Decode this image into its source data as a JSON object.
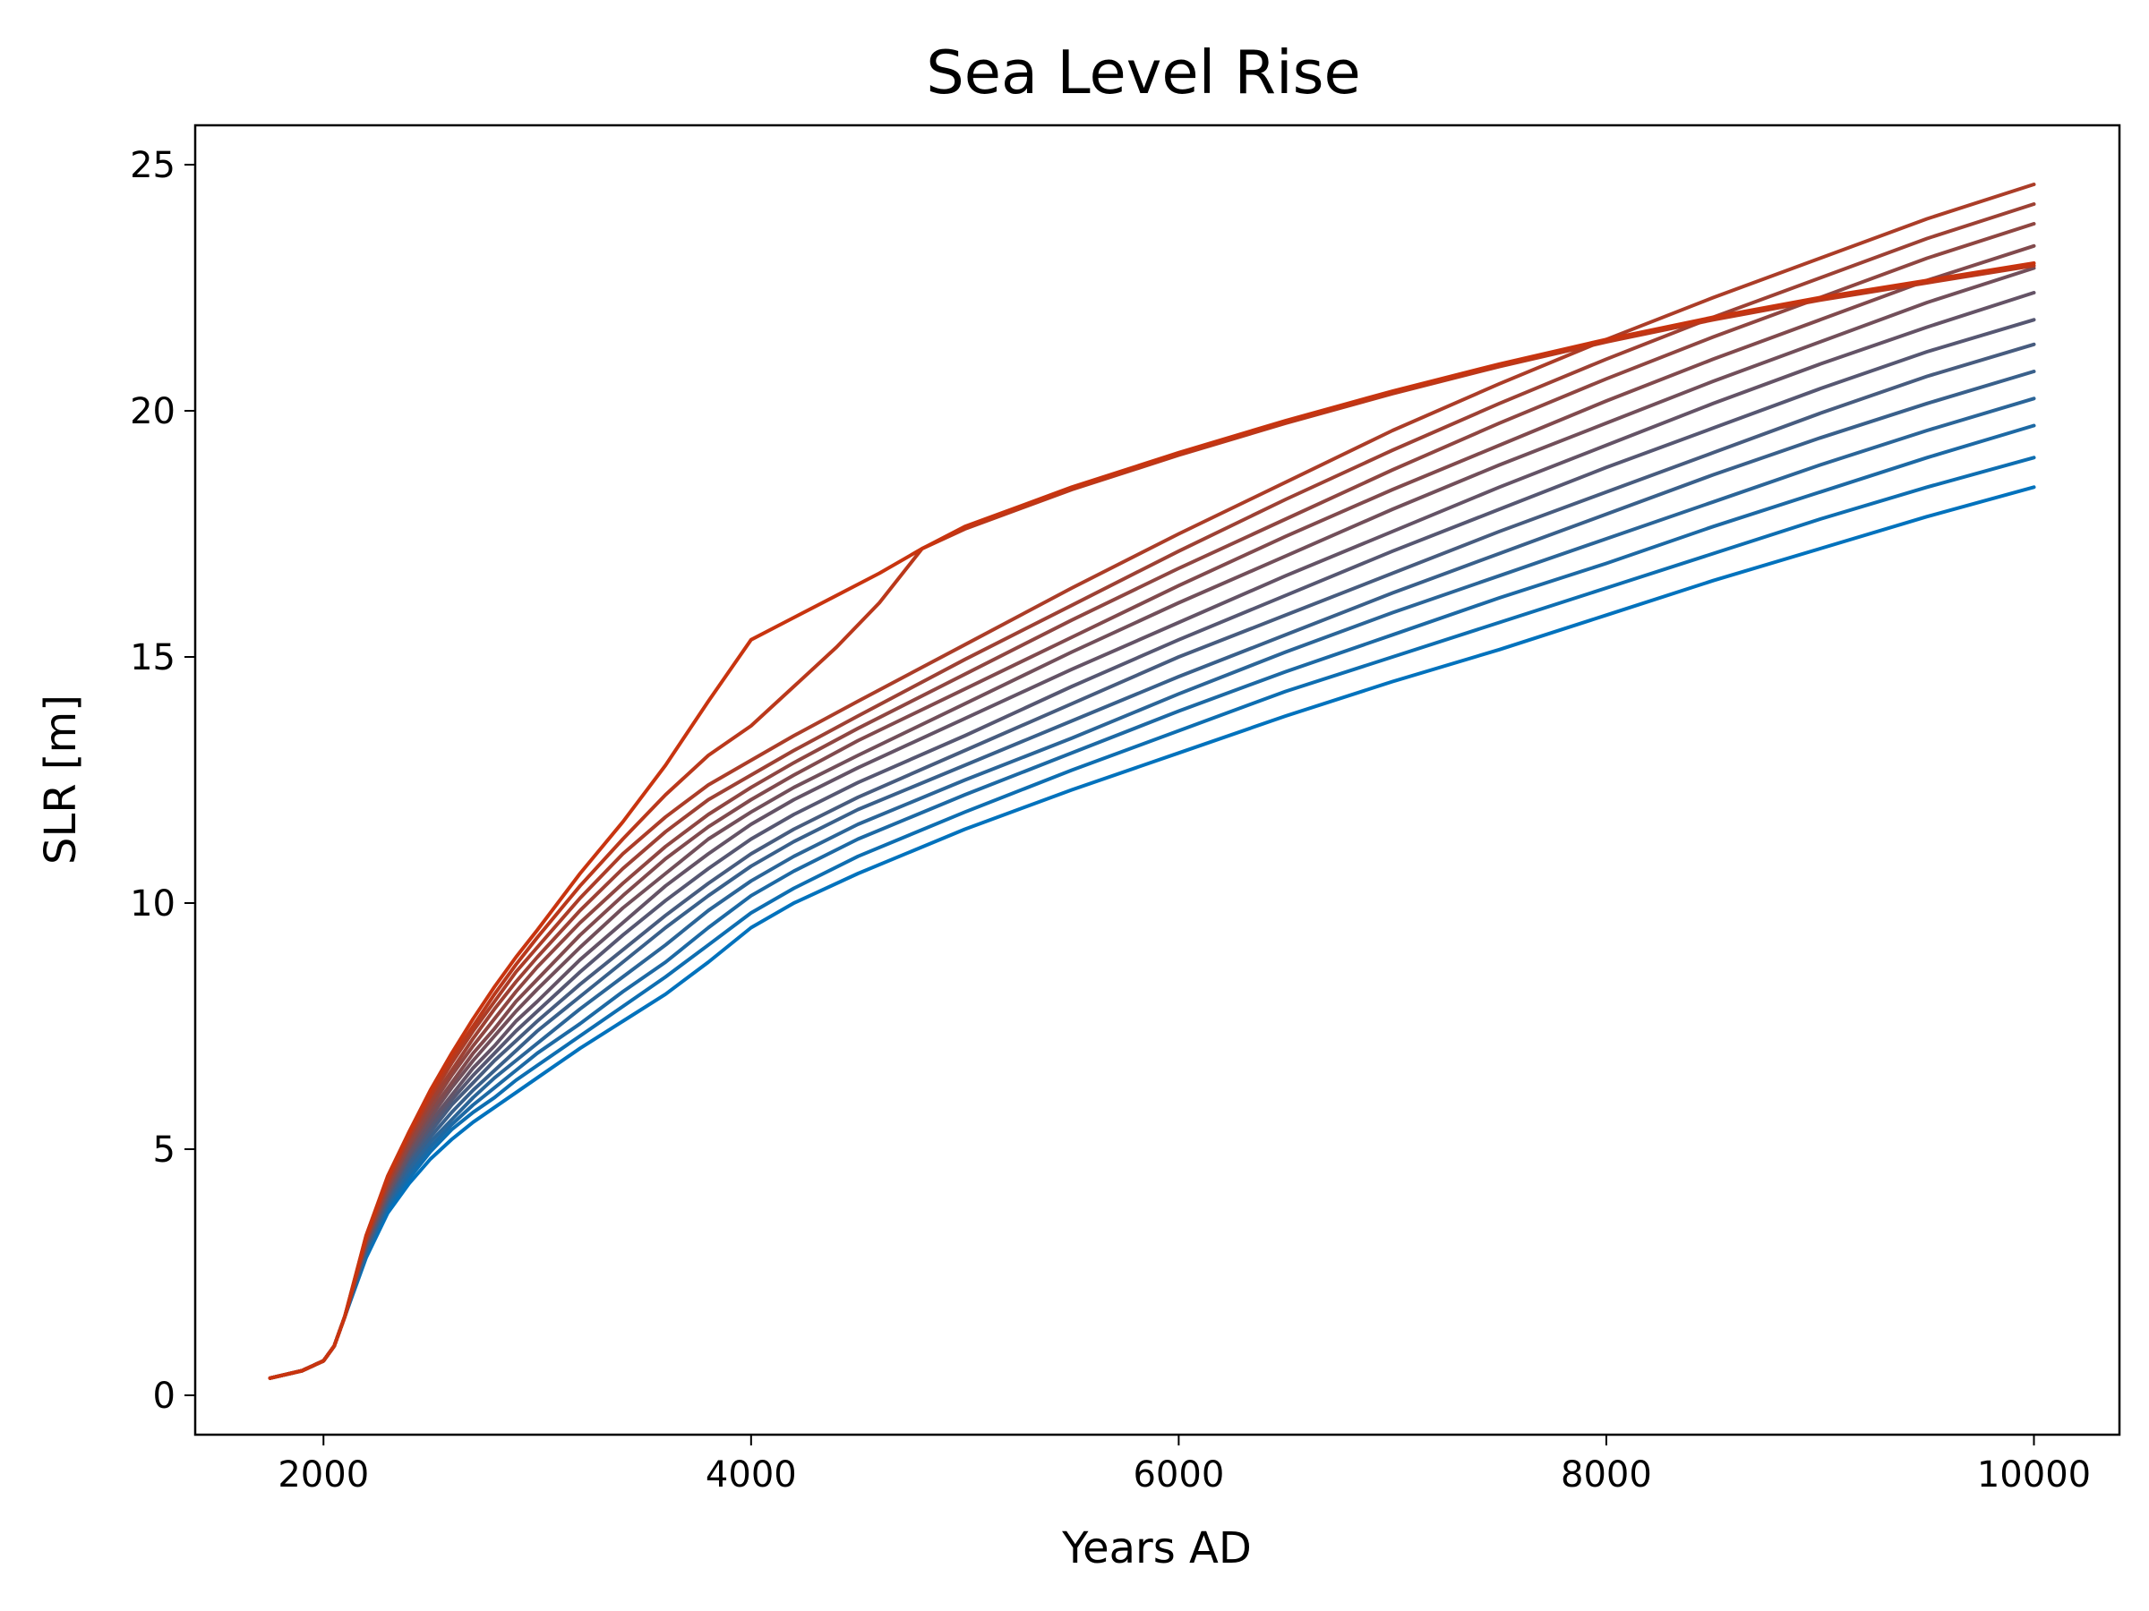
{
  "chart_data": {
    "type": "line",
    "title": "Sea Level Rise",
    "xlabel": "Years AD",
    "ylabel": "SLR [m]",
    "xlim": [
      1400,
      10400
    ],
    "ylim": [
      -0.8,
      25.8
    ],
    "xticks": [
      2000,
      4000,
      6000,
      8000,
      10000
    ],
    "yticks": [
      0,
      5,
      10,
      15,
      20,
      25
    ],
    "grid": false,
    "legend": "none",
    "colors": {
      "start": "#0072bd",
      "end": "#c8340f"
    },
    "series": [
      {
        "x": [
          1750,
          1900,
          2000,
          2050,
          2100,
          2200,
          2300,
          2400,
          2500,
          2600,
          2700,
          2800,
          2900,
          3000,
          3200,
          3400,
          3600,
          3800,
          4000,
          4200,
          4500,
          5000,
          5500,
          6000,
          6500,
          7000,
          7500,
          8000,
          8500,
          9000,
          9500,
          10000
        ],
        "values": [
          0.35,
          0.5,
          0.7,
          1.0,
          1.6,
          2.8,
          3.7,
          4.3,
          4.8,
          5.2,
          5.55,
          5.85,
          6.15,
          6.45,
          7.05,
          7.6,
          8.15,
          8.8,
          9.5,
          10.0,
          10.6,
          11.5,
          12.3,
          13.05,
          13.8,
          14.5,
          15.15,
          15.85,
          16.55,
          17.2,
          17.85,
          18.45
        ]
      },
      {
        "x": [
          1750,
          1900,
          2000,
          2050,
          2100,
          2200,
          2300,
          2400,
          2500,
          2600,
          2700,
          2800,
          2900,
          3000,
          3200,
          3400,
          3600,
          3800,
          4000,
          4200,
          4500,
          5000,
          5500,
          6000,
          6500,
          7000,
          7500,
          8000,
          8500,
          9000,
          9500,
          10000
        ],
        "values": [
          0.35,
          0.5,
          0.7,
          1.0,
          1.6,
          2.85,
          3.8,
          4.4,
          4.95,
          5.4,
          5.75,
          6.05,
          6.4,
          6.7,
          7.3,
          7.9,
          8.5,
          9.15,
          9.8,
          10.3,
          10.95,
          11.85,
          12.7,
          13.5,
          14.3,
          15.0,
          15.7,
          16.4,
          17.1,
          17.8,
          18.45,
          19.05
        ]
      },
      {
        "x": [
          1750,
          1900,
          2000,
          2050,
          2100,
          2200,
          2300,
          2400,
          2500,
          2600,
          2700,
          2800,
          2900,
          3000,
          3200,
          3400,
          3600,
          3800,
          4000,
          4200,
          4500,
          5000,
          5500,
          6000,
          6500,
          7000,
          7500,
          8000,
          8500,
          9000,
          9500,
          10000
        ],
        "values": [
          0.35,
          0.5,
          0.7,
          1.0,
          1.6,
          2.9,
          3.85,
          4.5,
          5.05,
          5.5,
          5.9,
          6.25,
          6.6,
          6.95,
          7.55,
          8.2,
          8.8,
          9.5,
          10.15,
          10.65,
          11.3,
          12.2,
          13.05,
          13.9,
          14.7,
          15.45,
          16.2,
          16.9,
          17.65,
          18.35,
          19.05,
          19.7
        ]
      },
      {
        "x": [
          1750,
          1900,
          2000,
          2050,
          2100,
          2200,
          2300,
          2400,
          2500,
          2600,
          2700,
          2800,
          2900,
          3000,
          3200,
          3400,
          3600,
          3800,
          4000,
          4200,
          4500,
          5000,
          5500,
          6000,
          6500,
          7000,
          7500,
          8000,
          8500,
          9000,
          9500,
          10000
        ],
        "values": [
          0.35,
          0.5,
          0.7,
          1.0,
          1.6,
          2.95,
          3.9,
          4.6,
          5.15,
          5.6,
          6.05,
          6.45,
          6.8,
          7.15,
          7.85,
          8.5,
          9.15,
          9.85,
          10.45,
          10.95,
          11.6,
          12.5,
          13.35,
          14.25,
          15.1,
          15.9,
          16.65,
          17.4,
          18.15,
          18.9,
          19.6,
          20.25
        ]
      },
      {
        "x": [
          1750,
          1900,
          2000,
          2050,
          2100,
          2200,
          2300,
          2400,
          2500,
          2600,
          2700,
          2800,
          2900,
          3000,
          3200,
          3400,
          3600,
          3800,
          4000,
          4200,
          4500,
          5000,
          5500,
          6000,
          6500,
          7000,
          7500,
          8000,
          8500,
          9000,
          9500,
          10000
        ],
        "values": [
          0.35,
          0.5,
          0.7,
          1.0,
          1.6,
          3.0,
          3.95,
          4.7,
          5.25,
          5.75,
          6.2,
          6.6,
          7.0,
          7.4,
          8.1,
          8.8,
          9.5,
          10.15,
          10.75,
          11.25,
          11.9,
          12.8,
          13.7,
          14.6,
          15.45,
          16.3,
          17.1,
          17.9,
          18.7,
          19.45,
          20.15,
          20.8
        ]
      },
      {
        "x": [
          1750,
          1900,
          2000,
          2050,
          2100,
          2200,
          2300,
          2400,
          2500,
          2600,
          2700,
          2800,
          2900,
          3000,
          3200,
          3400,
          3600,
          3800,
          4000,
          4200,
          4500,
          5000,
          5500,
          6000,
          6500,
          7000,
          7500,
          8000,
          8500,
          9000,
          9500,
          10000
        ],
        "values": [
          0.35,
          0.5,
          0.7,
          1.0,
          1.6,
          3.0,
          4.0,
          4.8,
          5.35,
          5.9,
          6.35,
          6.8,
          7.2,
          7.6,
          8.35,
          9.05,
          9.75,
          10.4,
          11.0,
          11.5,
          12.15,
          13.1,
          14.05,
          15.0,
          15.85,
          16.7,
          17.55,
          18.35,
          19.15,
          19.95,
          20.7,
          21.35
        ]
      },
      {
        "x": [
          1750,
          1900,
          2000,
          2050,
          2100,
          2200,
          2300,
          2400,
          2500,
          2600,
          2700,
          2800,
          2900,
          3000,
          3200,
          3400,
          3600,
          3800,
          4000,
          4200,
          4500,
          5000,
          5500,
          6000,
          6500,
          7000,
          7500,
          8000,
          8500,
          9000,
          9500,
          10000
        ],
        "values": [
          0.35,
          0.5,
          0.7,
          1.0,
          1.6,
          3.05,
          4.05,
          4.85,
          5.45,
          6.0,
          6.5,
          6.95,
          7.4,
          7.8,
          8.6,
          9.35,
          10.05,
          10.7,
          11.3,
          11.8,
          12.45,
          13.4,
          14.4,
          15.35,
          16.25,
          17.15,
          18.0,
          18.85,
          19.65,
          20.45,
          21.2,
          21.85
        ]
      },
      {
        "x": [
          1750,
          1900,
          2000,
          2050,
          2100,
          2200,
          2300,
          2400,
          2500,
          2600,
          2700,
          2800,
          2900,
          3000,
          3200,
          3400,
          3600,
          3800,
          4000,
          4200,
          4500,
          5000,
          5500,
          6000,
          6500,
          7000,
          7500,
          8000,
          8500,
          9000,
          9500,
          10000
        ],
        "values": [
          0.35,
          0.5,
          0.7,
          1.0,
          1.6,
          3.1,
          4.1,
          4.9,
          5.55,
          6.1,
          6.65,
          7.1,
          7.6,
          8.0,
          8.85,
          9.6,
          10.35,
          11.0,
          11.6,
          12.1,
          12.75,
          13.75,
          14.75,
          15.7,
          16.65,
          17.55,
          18.45,
          19.3,
          20.15,
          20.95,
          21.7,
          22.4
        ]
      },
      {
        "x": [
          1750,
          1900,
          2000,
          2050,
          2100,
          2200,
          2300,
          2400,
          2500,
          2600,
          2700,
          2800,
          2900,
          3000,
          3200,
          3400,
          3600,
          3800,
          4000,
          4200,
          4500,
          5000,
          5500,
          6000,
          6500,
          7000,
          7500,
          8000,
          8500,
          9000,
          9500,
          10000
        ],
        "values": [
          0.35,
          0.5,
          0.7,
          1.0,
          1.6,
          3.1,
          4.15,
          5.0,
          5.65,
          6.25,
          6.8,
          7.3,
          7.8,
          8.25,
          9.1,
          9.9,
          10.6,
          11.3,
          11.85,
          12.35,
          13.0,
          14.05,
          15.1,
          16.1,
          17.05,
          18.0,
          18.9,
          19.75,
          20.6,
          21.4,
          22.2,
          22.9
        ]
      },
      {
        "x": [
          1750,
          1900,
          2000,
          2050,
          2100,
          2200,
          2300,
          2400,
          2500,
          2600,
          2700,
          2800,
          2900,
          3000,
          3200,
          3400,
          3600,
          3800,
          4000,
          4200,
          4500,
          5000,
          5500,
          6000,
          6500,
          7000,
          7500,
          8000,
          8500,
          9000,
          9500,
          10000
        ],
        "values": [
          0.35,
          0.5,
          0.7,
          1.0,
          1.6,
          3.15,
          4.2,
          5.05,
          5.75,
          6.35,
          6.95,
          7.45,
          8.0,
          8.45,
          9.35,
          10.15,
          10.9,
          11.55,
          12.1,
          12.6,
          13.3,
          14.35,
          15.4,
          16.45,
          17.45,
          18.4,
          19.3,
          20.2,
          21.05,
          21.85,
          22.65,
          23.35
        ]
      },
      {
        "x": [
          1750,
          1900,
          2000,
          2050,
          2100,
          2200,
          2300,
          2400,
          2500,
          2600,
          2700,
          2800,
          2900,
          3000,
          3200,
          3400,
          3600,
          3800,
          4000,
          4200,
          4500,
          5000,
          5500,
          6000,
          6500,
          7000,
          7500,
          8000,
          8500,
          9000,
          9500,
          10000
        ],
        "values": [
          0.35,
          0.5,
          0.7,
          1.0,
          1.6,
          3.15,
          4.25,
          5.1,
          5.85,
          6.5,
          7.1,
          7.65,
          8.2,
          8.7,
          9.6,
          10.4,
          11.15,
          11.8,
          12.35,
          12.85,
          13.55,
          14.65,
          15.75,
          16.8,
          17.8,
          18.8,
          19.75,
          20.65,
          21.5,
          22.3,
          23.1,
          23.8
        ]
      },
      {
        "x": [
          1750,
          1900,
          2000,
          2050,
          2100,
          2200,
          2300,
          2400,
          2500,
          2600,
          2700,
          2800,
          2900,
          3000,
          3200,
          3400,
          3600,
          3800,
          4000,
          4200,
          4500,
          5000,
          5500,
          6000,
          6500,
          7000,
          7500,
          8000,
          8500,
          9000,
          9500,
          10000
        ],
        "values": [
          0.35,
          0.5,
          0.7,
          1.0,
          1.6,
          3.2,
          4.3,
          5.2,
          5.95,
          6.6,
          7.25,
          7.85,
          8.4,
          8.9,
          9.85,
          10.7,
          11.45,
          12.1,
          12.6,
          13.1,
          13.8,
          14.95,
          16.05,
          17.15,
          18.2,
          19.2,
          20.15,
          21.05,
          21.9,
          22.7,
          23.5,
          24.2
        ]
      },
      {
        "x": [
          1750,
          1900,
          2000,
          2050,
          2100,
          2200,
          2300,
          2400,
          2500,
          2600,
          2700,
          2800,
          2900,
          3000,
          3200,
          3400,
          3600,
          3800,
          4000,
          4200,
          4500,
          5000,
          5500,
          6000,
          6500,
          7000,
          7500,
          8000,
          8500,
          9000,
          9500,
          10000
        ],
        "values": [
          0.35,
          0.5,
          0.7,
          1.0,
          1.6,
          3.2,
          4.35,
          5.25,
          6.05,
          6.75,
          7.4,
          8.0,
          8.6,
          9.1,
          10.1,
          11.0,
          11.75,
          12.4,
          12.9,
          13.4,
          14.1,
          15.25,
          16.4,
          17.5,
          18.55,
          19.6,
          20.55,
          21.45,
          22.3,
          23.1,
          23.9,
          24.6
        ]
      },
      {
        "x": [
          1750,
          1900,
          2000,
          2050,
          2100,
          2200,
          2300,
          2400,
          2500,
          2600,
          2700,
          2800,
          2900,
          3000,
          3200,
          3400,
          3600,
          3800,
          4000,
          4200,
          4400,
          4600,
          4800,
          5000,
          5500,
          6000,
          6500,
          7000,
          7500,
          8000,
          8500,
          9000,
          9500,
          10000
        ],
        "values": [
          0.35,
          0.5,
          0.7,
          1.0,
          1.6,
          3.25,
          4.4,
          5.3,
          6.1,
          6.85,
          7.5,
          8.15,
          8.75,
          9.3,
          10.35,
          11.3,
          12.2,
          13.0,
          13.6,
          14.4,
          15.2,
          16.1,
          17.2,
          17.6,
          18.4,
          19.1,
          19.75,
          20.35,
          20.9,
          21.4,
          21.85,
          22.25,
          22.6,
          22.95
        ]
      },
      {
        "x": [
          1750,
          1900,
          2000,
          2050,
          2100,
          2200,
          2300,
          2400,
          2500,
          2600,
          2700,
          2800,
          2900,
          3000,
          3200,
          3400,
          3600,
          3800,
          4000,
          4200,
          4400,
          4600,
          4800,
          5000,
          5500,
          6000,
          6500,
          7000,
          7500,
          8000,
          8500,
          9000,
          9500,
          10000
        ],
        "values": [
          0.35,
          0.5,
          0.7,
          1.0,
          1.6,
          3.25,
          4.45,
          5.35,
          6.2,
          6.95,
          7.65,
          8.3,
          8.9,
          9.45,
          10.6,
          11.65,
          12.8,
          14.1,
          15.35,
          15.8,
          16.25,
          16.7,
          17.2,
          17.65,
          18.45,
          19.15,
          19.8,
          20.4,
          20.95,
          21.45,
          21.9,
          22.3,
          22.65,
          23.0
        ]
      }
    ]
  }
}
